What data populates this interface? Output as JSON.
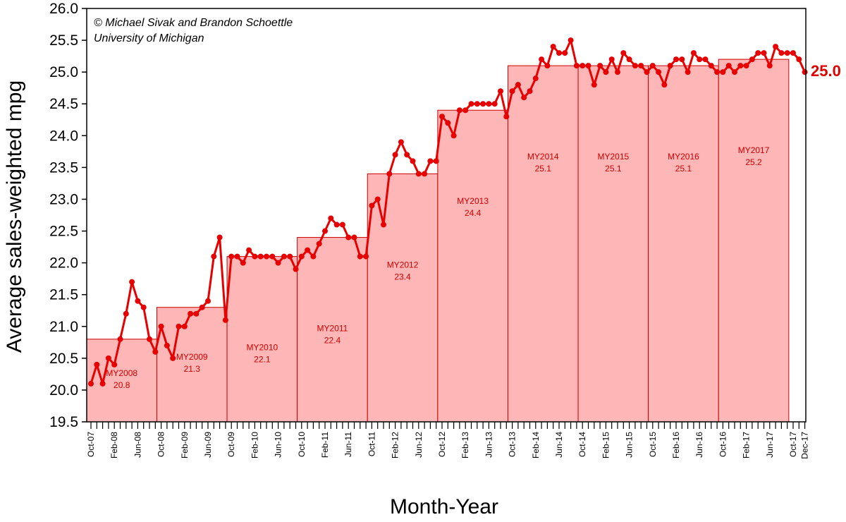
{
  "credit": {
    "line1": "© Michael Sivak and Brandon Schoettle",
    "line2": "University of Michigan"
  },
  "chart_data": {
    "type": "line",
    "title": "",
    "xlabel": "Month-Year",
    "ylabel": "Average sales-weighted mpg",
    "ylim": [
      19.5,
      26.0
    ],
    "y_ticks": [
      "19.5",
      "20.0",
      "20.5",
      "21.0",
      "21.5",
      "22.0",
      "22.5",
      "23.0",
      "23.5",
      "24.0",
      "24.5",
      "25.0",
      "25.5",
      "26.0"
    ],
    "x_tick_labels": [
      {
        "month_index": 0,
        "label": "Oct-07"
      },
      {
        "month_index": 4,
        "label": "Feb-08"
      },
      {
        "month_index": 8,
        "label": "Jun-08"
      },
      {
        "month_index": 12,
        "label": "Oct-08"
      },
      {
        "month_index": 16,
        "label": "Feb-09"
      },
      {
        "month_index": 20,
        "label": "Jun-09"
      },
      {
        "month_index": 24,
        "label": "Oct-09"
      },
      {
        "month_index": 28,
        "label": "Feb-10"
      },
      {
        "month_index": 32,
        "label": "Jun-10"
      },
      {
        "month_index": 36,
        "label": "Oct-10"
      },
      {
        "month_index": 40,
        "label": "Feb-11"
      },
      {
        "month_index": 44,
        "label": "Jun-11"
      },
      {
        "month_index": 48,
        "label": "Oct-11"
      },
      {
        "month_index": 52,
        "label": "Feb-12"
      },
      {
        "month_index": 56,
        "label": "Jun-12"
      },
      {
        "month_index": 60,
        "label": "Oct-12"
      },
      {
        "month_index": 64,
        "label": "Feb-13"
      },
      {
        "month_index": 68,
        "label": "Jun-13"
      },
      {
        "month_index": 72,
        "label": "Oct-13"
      },
      {
        "month_index": 76,
        "label": "Feb-14"
      },
      {
        "month_index": 80,
        "label": "Jun-14"
      },
      {
        "month_index": 84,
        "label": "Oct-14"
      },
      {
        "month_index": 88,
        "label": "Feb-15"
      },
      {
        "month_index": 92,
        "label": "Jun-15"
      },
      {
        "month_index": 96,
        "label": "Oct-15"
      },
      {
        "month_index": 100,
        "label": "Feb-16"
      },
      {
        "month_index": 104,
        "label": "Jun-16"
      },
      {
        "month_index": 108,
        "label": "Oct-16"
      },
      {
        "month_index": 112,
        "label": "Feb-17"
      },
      {
        "month_index": 116,
        "label": "Jun-17"
      },
      {
        "month_index": 120,
        "label": "Oct-17"
      },
      {
        "month_index": 122,
        "label": "Dec-17"
      }
    ],
    "model_years": [
      {
        "name": "MY2008",
        "value": 20.8,
        "start_month": 0,
        "end_month": 12
      },
      {
        "name": "MY2009",
        "value": 21.3,
        "start_month": 12,
        "end_month": 24
      },
      {
        "name": "MY2010",
        "value": 22.1,
        "start_month": 24,
        "end_month": 36
      },
      {
        "name": "MY2011",
        "value": 22.4,
        "start_month": 36,
        "end_month": 48
      },
      {
        "name": "MY2012",
        "value": 23.4,
        "start_month": 48,
        "end_month": 60
      },
      {
        "name": "MY2013",
        "value": 24.4,
        "start_month": 60,
        "end_month": 72
      },
      {
        "name": "MY2014",
        "value": 25.1,
        "start_month": 72,
        "end_month": 84
      },
      {
        "name": "MY2015",
        "value": 25.1,
        "start_month": 84,
        "end_month": 96
      },
      {
        "name": "MY2016",
        "value": 25.1,
        "start_month": 96,
        "end_month": 108
      },
      {
        "name": "MY2017",
        "value": 25.2,
        "start_month": 108,
        "end_month": 120
      }
    ],
    "series": [
      {
        "name": "",
        "values": [
          20.1,
          20.4,
          20.1,
          20.5,
          20.4,
          20.8,
          21.2,
          21.7,
          21.4,
          21.3,
          20.8,
          20.6,
          21.0,
          20.7,
          20.5,
          21.0,
          21.0,
          21.2,
          21.2,
          21.3,
          21.4,
          22.1,
          22.4,
          21.1,
          22.1,
          22.1,
          22.0,
          22.2,
          22.1,
          22.1,
          22.1,
          22.1,
          22.0,
          22.1,
          22.1,
          21.9,
          22.1,
          22.2,
          22.1,
          22.3,
          22.5,
          22.7,
          22.6,
          22.6,
          22.4,
          22.4,
          22.1,
          22.1,
          22.9,
          23.0,
          22.6,
          23.4,
          23.7,
          23.9,
          23.7,
          23.6,
          23.4,
          23.4,
          23.6,
          23.6,
          24.3,
          24.2,
          24.0,
          24.4,
          24.4,
          24.5,
          24.5,
          24.5,
          24.5,
          24.5,
          24.7,
          24.3,
          24.7,
          24.8,
          24.6,
          24.7,
          24.9,
          25.2,
          25.1,
          25.4,
          25.3,
          25.3,
          25.5,
          25.1,
          25.1,
          25.1,
          24.8,
          25.1,
          25.0,
          25.2,
          25.0,
          25.3,
          25.2,
          25.1,
          25.1,
          25.0,
          25.1,
          25.0,
          24.8,
          25.1,
          25.2,
          25.2,
          25.0,
          25.3,
          25.2,
          25.2,
          25.1,
          25.0,
          25.0,
          25.1,
          25.0,
          25.1,
          25.1,
          25.2,
          25.3,
          25.3,
          25.1,
          25.4,
          25.3,
          25.3,
          25.3,
          25.2,
          25.0
        ]
      }
    ],
    "end_label": "25.0",
    "colors": {
      "line": "#e60000",
      "bar_fill": "#ffb6b6",
      "bar_stroke": "#cc0000",
      "label": "#cc0000"
    }
  }
}
